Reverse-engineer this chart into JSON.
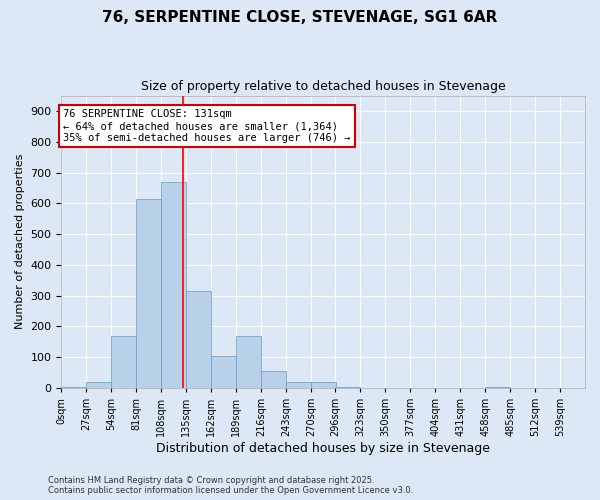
{
  "title": "76, SERPENTINE CLOSE, STEVENAGE, SG1 6AR",
  "subtitle": "Size of property relative to detached houses in Stevenage",
  "xlabel": "Distribution of detached houses by size in Stevenage",
  "ylabel": "Number of detached properties",
  "bin_labels": [
    "0sqm",
    "27sqm",
    "54sqm",
    "81sqm",
    "108sqm",
    "135sqm",
    "162sqm",
    "189sqm",
    "216sqm",
    "243sqm",
    "270sqm",
    "296sqm",
    "323sqm",
    "350sqm",
    "377sqm",
    "404sqm",
    "431sqm",
    "458sqm",
    "485sqm",
    "512sqm",
    "539sqm"
  ],
  "bin_edges": [
    0,
    27,
    54,
    81,
    108,
    135,
    162,
    189,
    216,
    243,
    270,
    296,
    323,
    350,
    377,
    404,
    431,
    458,
    485,
    512,
    539
  ],
  "bar_values": [
    2,
    20,
    170,
    615,
    670,
    315,
    105,
    170,
    55,
    20,
    20,
    5,
    0,
    0,
    0,
    0,
    0,
    5,
    0,
    0
  ],
  "bar_color": "#b8d0e8",
  "bar_edge_color": "#6699cc",
  "property_size": 131,
  "red_line_x": 131,
  "annotation_line1": "76 SERPENTINE CLOSE: 131sqm",
  "annotation_line2": "← 64% of detached houses are smaller (1,364)",
  "annotation_line3": "35% of semi-detached houses are larger (746) →",
  "annotation_box_color": "#ffffff",
  "annotation_box_edge_color": "#cc0000",
  "ylim": [
    0,
    950
  ],
  "yticks": [
    0,
    100,
    200,
    300,
    400,
    500,
    600,
    700,
    800,
    900
  ],
  "background_color": "#dce8f5",
  "plot_background_color": "#dce8f5",
  "footer_line1": "Contains HM Land Registry data © Crown copyright and database right 2025.",
  "footer_line2": "Contains public sector information licensed under the Open Government Licence v3.0.",
  "grid_color": "#ffffff",
  "title_fontsize": 11,
  "subtitle_fontsize": 9,
  "ylabel_fontsize": 8,
  "xlabel_fontsize": 9
}
